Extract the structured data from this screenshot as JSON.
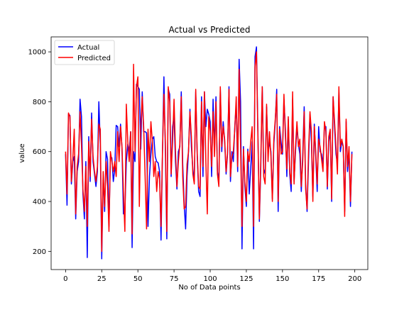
{
  "chart_data": {
    "type": "line",
    "title": "Actual vs Predicted",
    "xlabel": "No of Data points",
    "ylabel": "value",
    "xlim": [
      -10,
      209
    ],
    "ylim": [
      127,
      1060
    ],
    "xticks": [
      0,
      25,
      50,
      75,
      100,
      125,
      150,
      175,
      200
    ],
    "yticks": [
      200,
      400,
      600,
      800,
      1000
    ],
    "grid": false,
    "legend": "upper left",
    "series": [
      {
        "name": "Actual",
        "color": "#0000ff",
        "x": [
          0,
          1,
          2,
          3,
          4,
          5,
          6,
          7,
          8,
          9,
          10,
          11,
          12,
          13,
          14,
          15,
          16,
          17,
          18,
          19,
          20,
          21,
          22,
          23,
          24,
          25,
          26,
          27,
          28,
          29,
          30,
          31,
          32,
          33,
          34,
          35,
          36,
          37,
          38,
          39,
          40,
          41,
          42,
          43,
          44,
          45,
          46,
          47,
          48,
          49,
          50,
          51,
          52,
          53,
          54,
          55,
          56,
          57,
          58,
          59,
          60,
          61,
          62,
          63,
          64,
          65,
          66,
          67,
          68,
          69,
          70,
          71,
          72,
          73,
          74,
          75,
          76,
          77,
          78,
          79,
          80,
          81,
          82,
          83,
          84,
          85,
          86,
          87,
          88,
          89,
          90,
          91,
          92,
          93,
          94,
          95,
          96,
          97,
          98,
          99,
          100,
          101,
          102,
          103,
          104,
          105,
          106,
          107,
          108,
          109,
          110,
          111,
          112,
          113,
          114,
          115,
          116,
          117,
          118,
          119,
          120,
          121,
          122,
          123,
          124,
          125,
          126,
          127,
          128,
          129,
          130,
          131,
          132,
          133,
          134,
          135,
          136,
          137,
          138,
          139,
          140,
          141,
          142,
          143,
          144,
          145,
          146,
          147,
          148,
          149,
          150,
          151,
          152,
          153,
          154,
          155,
          156,
          157,
          158,
          159,
          160,
          161,
          162,
          163,
          164,
          165,
          166,
          167,
          168,
          169,
          170,
          171,
          172,
          173,
          174,
          175,
          176,
          177,
          178,
          179,
          180,
          181,
          182,
          183,
          184,
          185,
          186,
          187,
          188,
          189,
          190,
          191,
          192,
          193,
          194,
          195,
          196,
          197,
          198
        ],
        "values": [
          590,
          385,
          750,
          745,
          470,
          560,
          580,
          330,
          520,
          560,
          810,
          740,
          430,
          330,
          560,
          175,
          660,
          480,
          755,
          560,
          510,
          460,
          520,
          800,
          630,
          170,
          510,
          360,
          600,
          570,
          300,
          580,
          575,
          480,
          530,
          705,
          700,
          620,
          710,
          615,
          350,
          360,
          560,
          630,
          600,
          680,
          215,
          600,
          560,
          870,
          860,
          850,
          610,
          840,
          680,
          680,
          675,
          300,
          500,
          590,
          650,
          660,
          580,
          560,
          555,
          520,
          245,
          590,
          900,
          600,
          250,
          850,
          830,
          500,
          700,
          740,
          560,
          450,
          600,
          620,
          840,
          550,
          390,
          290,
          500,
          600,
          770,
          620,
          530,
          480,
          840,
          590,
          440,
          420,
          820,
          500,
          840,
          700,
          770,
          750,
          720,
          500,
          810,
          610,
          820,
          520,
          480,
          850,
          600,
          720,
          640,
          510,
          590,
          860,
          480,
          600,
          560,
          700,
          790,
          520,
          970,
          800,
          210,
          620,
          460,
          380,
          610,
          430,
          530,
          640,
          210,
          980,
          1020,
          680,
          320,
          540,
          860,
          530,
          510,
          780,
          590,
          640,
          600,
          410,
          630,
          720,
          850,
          360,
          700,
          640,
          590,
          810,
          690,
          500,
          730,
          510,
          440,
          810,
          480,
          600,
          700,
          630,
          590,
          440,
          590,
          780,
          470,
          360,
          560,
          750,
          640,
          420,
          710,
          580,
          440,
          700,
          600,
          590,
          550,
          700,
          700,
          450,
          640,
          680,
          400,
          820,
          700,
          590,
          550,
          840,
          600,
          640,
          620,
          360,
          720,
          520,
          600,
          380,
          600
        ],
        "values_predicted_not_used": null
      },
      {
        "name": "Predicted",
        "color": "#ff0000",
        "x": [
          0,
          1,
          2,
          3,
          4,
          5,
          6,
          7,
          8,
          9,
          10,
          11,
          12,
          13,
          14,
          15,
          16,
          17,
          18,
          19,
          20,
          21,
          22,
          23,
          24,
          25,
          26,
          27,
          28,
          29,
          30,
          31,
          32,
          33,
          34,
          35,
          36,
          37,
          38,
          39,
          40,
          41,
          42,
          43,
          44,
          45,
          46,
          47,
          48,
          49,
          50,
          51,
          52,
          53,
          54,
          55,
          56,
          57,
          58,
          59,
          60,
          61,
          62,
          63,
          64,
          65,
          66,
          67,
          68,
          69,
          70,
          71,
          72,
          73,
          74,
          75,
          76,
          77,
          78,
          79,
          80,
          81,
          82,
          83,
          84,
          85,
          86,
          87,
          88,
          89,
          90,
          91,
          92,
          93,
          94,
          95,
          96,
          97,
          98,
          99,
          100,
          101,
          102,
          103,
          104,
          105,
          106,
          107,
          108,
          109,
          110,
          111,
          112,
          113,
          114,
          115,
          116,
          117,
          118,
          119,
          120,
          121,
          122,
          123,
          124,
          125,
          126,
          127,
          128,
          129,
          130,
          131,
          132,
          133,
          134,
          135,
          136,
          137,
          138,
          139,
          140,
          141,
          142,
          143,
          144,
          145,
          146,
          147,
          148,
          149,
          150,
          151,
          152,
          153,
          154,
          155,
          156,
          157,
          158,
          159,
          160,
          161,
          162,
          163,
          164,
          165,
          166,
          167,
          168,
          169,
          170,
          171,
          172,
          173,
          174,
          175,
          176,
          177,
          178,
          179,
          180,
          181,
          182,
          183,
          184,
          185,
          186,
          187,
          188,
          189,
          190,
          191,
          192,
          193,
          194,
          195,
          196,
          197,
          198
        ],
        "values": [
          600,
          430,
          755,
          740,
          480,
          570,
          690,
          350,
          540,
          590,
          760,
          620,
          450,
          360,
          540,
          300,
          640,
          500,
          730,
          580,
          520,
          480,
          540,
          710,
          690,
          200,
          520,
          380,
          560,
          460,
          280,
          600,
          560,
          520,
          560,
          500,
          680,
          560,
          700,
          620,
          440,
          280,
          790,
          640,
          560,
          680,
          270,
          950,
          600,
          860,
          900,
          380,
          700,
          820,
          700,
          500,
          290,
          690,
          560,
          720,
          640,
          500,
          560,
          440,
          520,
          490,
          300,
          600,
          830,
          640,
          280,
          860,
          800,
          510,
          640,
          810,
          600,
          460,
          560,
          630,
          820,
          500,
          370,
          380,
          550,
          600,
          760,
          660,
          510,
          470,
          850,
          600,
          460,
          450,
          800,
          540,
          840,
          560,
          350,
          740,
          680,
          540,
          760,
          580,
          800,
          510,
          460,
          860,
          620,
          700,
          650,
          520,
          600,
          850,
          500,
          580,
          600,
          690,
          820,
          540,
          930,
          620,
          300,
          610,
          480,
          400,
          600,
          560,
          640,
          700,
          300,
          940,
          1000,
          660,
          330,
          570,
          860,
          500,
          470,
          790,
          560,
          680,
          580,
          400,
          650,
          730,
          830,
          400,
          690,
          590,
          600,
          830,
          660,
          530,
          740,
          520,
          470,
          840,
          470,
          620,
          720,
          620,
          650,
          460,
          560,
          760,
          450,
          370,
          600,
          760,
          680,
          400,
          700,
          600,
          470,
          650,
          620,
          570,
          520,
          720,
          680,
          460,
          660,
          690,
          410,
          820,
          720,
          620,
          510,
          860,
          620,
          650,
          620,
          340,
          730,
          540,
          620,
          400,
          590
        ],
        "note": null
      }
    ]
  }
}
